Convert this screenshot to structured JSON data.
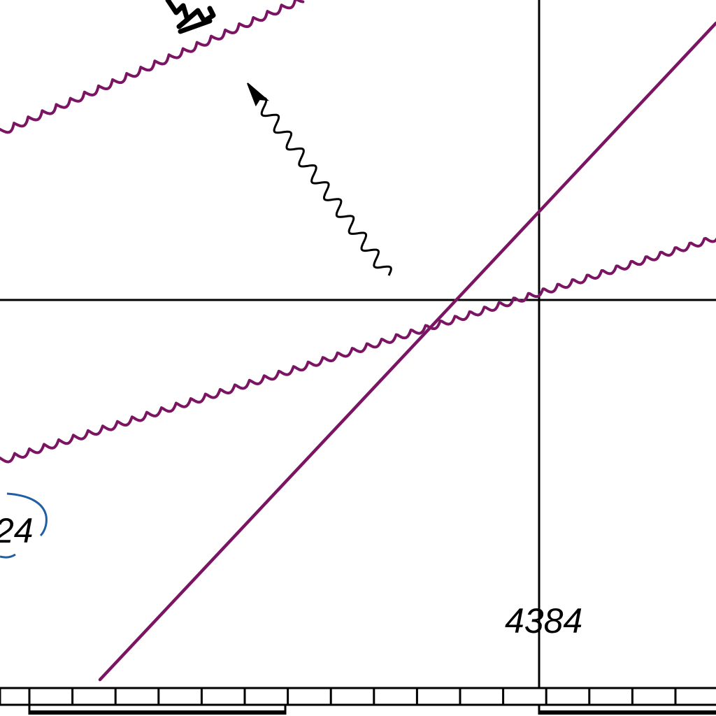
{
  "map": {
    "grid_label": "4384",
    "contour_label": "24",
    "colors": {
      "grid": "#000000",
      "boundary": "#7a1463",
      "label_bracket": "#1f5fa6",
      "arrow": "#000000",
      "background": "#ffffff"
    },
    "icons": {
      "flow_arrow": "wavy-arrow-icon",
      "scale_bar": "scale-bar-icon"
    }
  }
}
